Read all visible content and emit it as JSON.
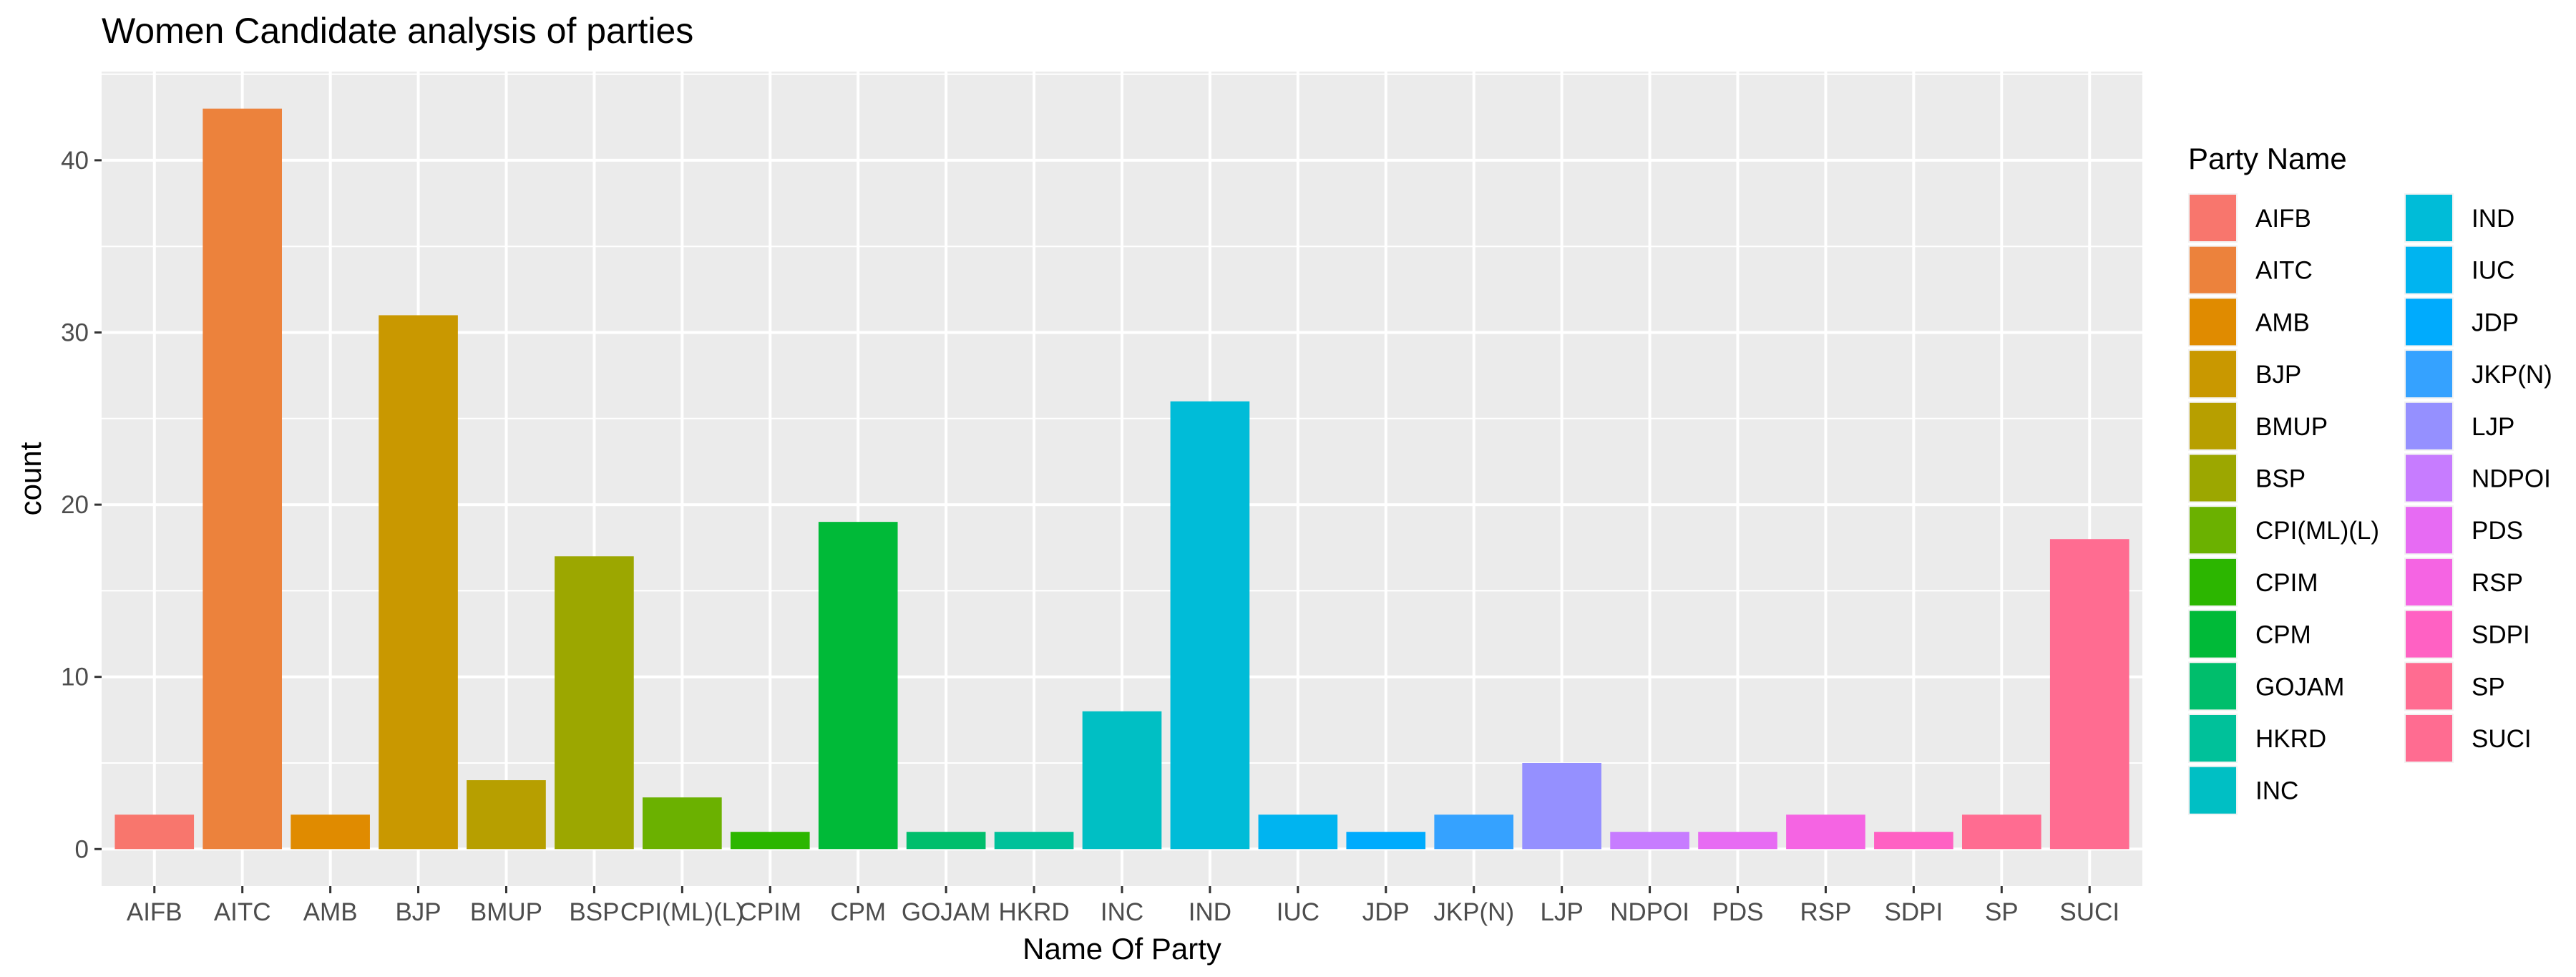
{
  "chart_data": {
    "type": "bar",
    "title": "Women Candidate analysis of parties",
    "xlabel": "Name Of Party",
    "ylabel": "count",
    "ylim": [
      -2.15,
      45.15
    ],
    "yticks": [
      0,
      10,
      20,
      30,
      40
    ],
    "grid": true,
    "legend_title": "Party Name",
    "legend_position": "right",
    "categories": [
      "AIFB",
      "AITC",
      "AMB",
      "BJP",
      "BMUP",
      "BSP",
      "CPI(ML)(L)",
      "CPIM",
      "CPM",
      "GOJAM",
      "HKRD",
      "INC",
      "IND",
      "IUC",
      "JDP",
      "JKP(N)",
      "LJP",
      "NDPOI",
      "PDS",
      "RSP",
      "SDPI",
      "SP",
      "SUCI"
    ],
    "values": [
      2,
      43,
      2,
      31,
      4,
      17,
      3,
      1,
      19,
      1,
      1,
      8,
      26,
      2,
      1,
      2,
      5,
      1,
      1,
      2,
      1,
      2,
      18
    ],
    "colors": [
      "#F8766D",
      "#EC823C",
      "#E08B00",
      "#C99800",
      "#B79F00",
      "#9CA700",
      "#6BB100",
      "#2CB600",
      "#00BA38",
      "#00BE6C",
      "#00C19A",
      "#00BFC4",
      "#00BCD8",
      "#00B4F0",
      "#00ABFD",
      "#35A2FF",
      "#9590FF",
      "#C77CFF",
      "#E76BF3",
      "#F564E3",
      "#FF61C3",
      "#FF6C91",
      "#FF6C91"
    ]
  }
}
